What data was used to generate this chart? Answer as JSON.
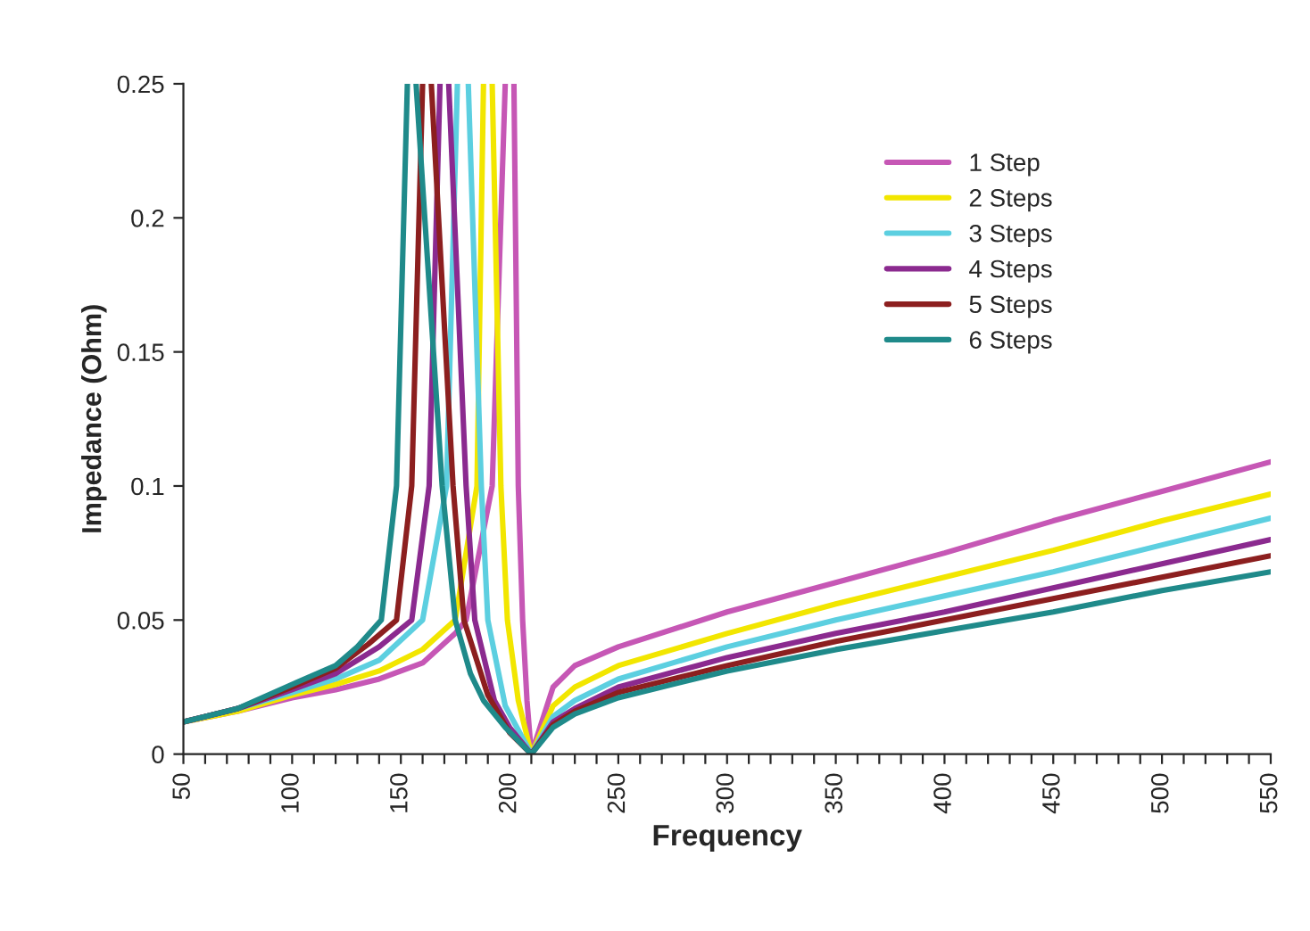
{
  "chart_data": {
    "type": "line",
    "xlabel": "Frequency",
    "ylabel": "Impedance (Ohm)",
    "xlim": [
      50,
      550
    ],
    "ylim": [
      0,
      0.25
    ],
    "xticks": [
      50,
      {
        "value": 60,
        "label": null
      },
      {
        "value": 70,
        "label": null
      },
      {
        "value": 80,
        "label": null
      },
      {
        "value": 90,
        "label": null
      },
      100,
      {
        "value": 110,
        "label": null
      },
      {
        "value": 120,
        "label": null
      },
      {
        "value": 130,
        "label": null
      },
      {
        "value": 140,
        "label": null
      },
      150,
      {
        "value": 160,
        "label": null
      },
      {
        "value": 170,
        "label": null
      },
      {
        "value": 180,
        "label": null
      },
      {
        "value": 190,
        "label": null
      },
      200,
      {
        "value": 210,
        "label": null
      },
      {
        "value": 220,
        "label": null
      },
      {
        "value": 230,
        "label": null
      },
      {
        "value": 240,
        "label": null
      },
      250,
      {
        "value": 260,
        "label": null
      },
      {
        "value": 270,
        "label": null
      },
      {
        "value": 280,
        "label": null
      },
      {
        "value": 290,
        "label": null
      },
      300,
      {
        "value": 310,
        "label": null
      },
      {
        "value": 320,
        "label": null
      },
      {
        "value": 330,
        "label": null
      },
      {
        "value": 340,
        "label": null
      },
      350,
      {
        "value": 360,
        "label": null
      },
      {
        "value": 370,
        "label": null
      },
      {
        "value": 380,
        "label": null
      },
      {
        "value": 390,
        "label": null
      },
      400,
      {
        "value": 410,
        "label": null
      },
      {
        "value": 420,
        "label": null
      },
      {
        "value": 430,
        "label": null
      },
      {
        "value": 440,
        "label": null
      },
      450,
      {
        "value": 460,
        "label": null
      },
      {
        "value": 470,
        "label": null
      },
      {
        "value": 480,
        "label": null
      },
      {
        "value": 490,
        "label": null
      },
      500,
      {
        "value": 510,
        "label": null
      },
      {
        "value": 520,
        "label": null
      },
      {
        "value": 530,
        "label": null
      },
      {
        "value": 540,
        "label": null
      },
      550
    ],
    "yticks": [
      0,
      0.05,
      0.1,
      0.15,
      0.2,
      0.25
    ],
    "grid": false,
    "legend": "top right",
    "marker": "none",
    "line_style": "solid",
    "series": [
      {
        "name": "1 Step",
        "color": "#c657b5",
        "x": [
          50,
          75,
          100,
          120,
          140,
          160,
          175,
          180,
          192,
          198,
          199,
          202,
          204,
          206,
          208,
          210,
          220,
          230,
          250,
          300,
          350,
          400,
          450,
          500,
          550
        ],
        "values": [
          0.012,
          0.016,
          0.021,
          0.024,
          0.028,
          0.034,
          0.045,
          0.05,
          0.1,
          0.25,
          null,
          0.25,
          0.1,
          0.05,
          0.02,
          0,
          0.025,
          0.033,
          0.04,
          0.053,
          0.064,
          0.075,
          0.087,
          0.098,
          0.109
        ]
      },
      {
        "name": "2 Steps",
        "color": "#f2e600",
        "x": [
          50,
          75,
          100,
          120,
          140,
          160,
          175,
          185,
          188,
          190,
          192,
          196,
          199,
          204,
          210,
          220,
          230,
          250,
          300,
          350,
          400,
          450,
          500,
          550
        ],
        "values": [
          0.012,
          0.016,
          0.022,
          0.026,
          0.031,
          0.039,
          0.05,
          0.1,
          0.25,
          null,
          0.25,
          0.1,
          0.05,
          0.02,
          0,
          0.018,
          0.025,
          0.033,
          0.045,
          0.056,
          0.066,
          0.076,
          0.087,
          0.097
        ]
      },
      {
        "name": "3 Steps",
        "color": "#5ccfe0",
        "x": [
          50,
          75,
          100,
          120,
          140,
          160,
          171,
          176,
          178,
          181,
          187,
          190,
          198,
          210,
          220,
          230,
          250,
          300,
          350,
          400,
          450,
          500,
          550
        ],
        "values": [
          0.012,
          0.017,
          0.023,
          0.028,
          0.035,
          0.05,
          0.1,
          0.25,
          null,
          0.25,
          0.1,
          0.05,
          0.018,
          0,
          0.014,
          0.02,
          0.028,
          0.04,
          0.05,
          0.059,
          0.068,
          0.078,
          0.088
        ]
      },
      {
        "name": "4 Steps",
        "color": "#8b2a8f",
        "x": [
          50,
          75,
          100,
          120,
          140,
          155,
          163,
          168,
          170,
          172,
          180,
          184,
          193,
          200,
          210,
          220,
          230,
          250,
          300,
          350,
          400,
          450,
          500,
          550
        ],
        "values": [
          0.012,
          0.017,
          0.024,
          0.03,
          0.04,
          0.05,
          0.1,
          0.25,
          null,
          0.25,
          0.1,
          0.05,
          0.02,
          0.01,
          0,
          0.012,
          0.017,
          0.025,
          0.036,
          0.045,
          0.053,
          0.062,
          0.071,
          0.08
        ]
      },
      {
        "name": "5 Steps",
        "color": "#8c1f1f",
        "x": [
          50,
          75,
          100,
          120,
          135,
          148,
          155,
          160,
          162,
          164,
          174,
          179,
          190,
          200,
          210,
          220,
          230,
          250,
          300,
          350,
          400,
          450,
          500,
          550
        ],
        "values": [
          0.012,
          0.017,
          0.025,
          0.032,
          0.041,
          0.05,
          0.1,
          0.25,
          null,
          0.25,
          0.1,
          0.05,
          0.022,
          0.008,
          0,
          0.011,
          0.016,
          0.023,
          0.033,
          0.042,
          0.05,
          0.058,
          0.066,
          0.074
        ]
      },
      {
        "name": "6 Steps",
        "color": "#1f8a8a",
        "x": [
          50,
          75,
          100,
          120,
          130,
          141,
          148,
          153,
          154,
          157,
          169,
          175,
          182,
          188,
          198,
          210,
          220,
          230,
          250,
          300,
          350,
          400,
          450,
          500,
          550
        ],
        "values": [
          0.012,
          0.017,
          0.026,
          0.033,
          0.04,
          0.05,
          0.1,
          0.25,
          null,
          0.25,
          0.1,
          0.05,
          0.03,
          0.02,
          0.01,
          0,
          0.01,
          0.015,
          0.021,
          0.031,
          0.039,
          0.046,
          0.053,
          0.061,
          0.068
        ]
      }
    ]
  }
}
